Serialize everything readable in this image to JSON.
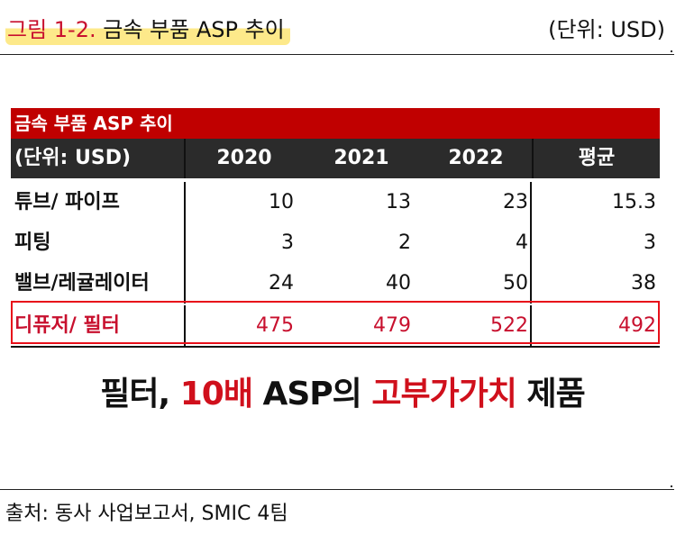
{
  "figure": {
    "title_prefix": "그림 1-2.",
    "title_text": "금속 부품 ASP 추이",
    "unit": "(단위: USD)"
  },
  "table": {
    "title": "금속 부품 ASP 추이",
    "header": {
      "label": "(단위: USD)",
      "years": [
        "2020",
        "2021",
        "2022"
      ],
      "avg": "평균"
    },
    "rows": [
      {
        "label": "튜브/ 파이프",
        "values": [
          "10",
          "13",
          "23"
        ],
        "avg": "15.3"
      },
      {
        "label": "피팅",
        "values": [
          "3",
          "2",
          "4"
        ],
        "avg": "3"
      },
      {
        "label": "밸브/레귤레이터",
        "values": [
          "24",
          "40",
          "50"
        ],
        "avg": "38"
      },
      {
        "label": "디퓨저/ 필터",
        "values": [
          "475",
          "479",
          "522"
        ],
        "avg": "492"
      }
    ],
    "highlight_color": "#e8101a"
  },
  "headline": {
    "part1": "필터, ",
    "part2": "10배",
    "part3": " ASP의 ",
    "part4": "고부가가치",
    "part5": " 제품"
  },
  "source": "출처: 동사 사업보고서, SMIC 4팀",
  "colors": {
    "header_red": "#c00000",
    "header_dark": "#2b2b2b",
    "accent_red": "#d0101c",
    "title_highlight": "#fde98a"
  }
}
